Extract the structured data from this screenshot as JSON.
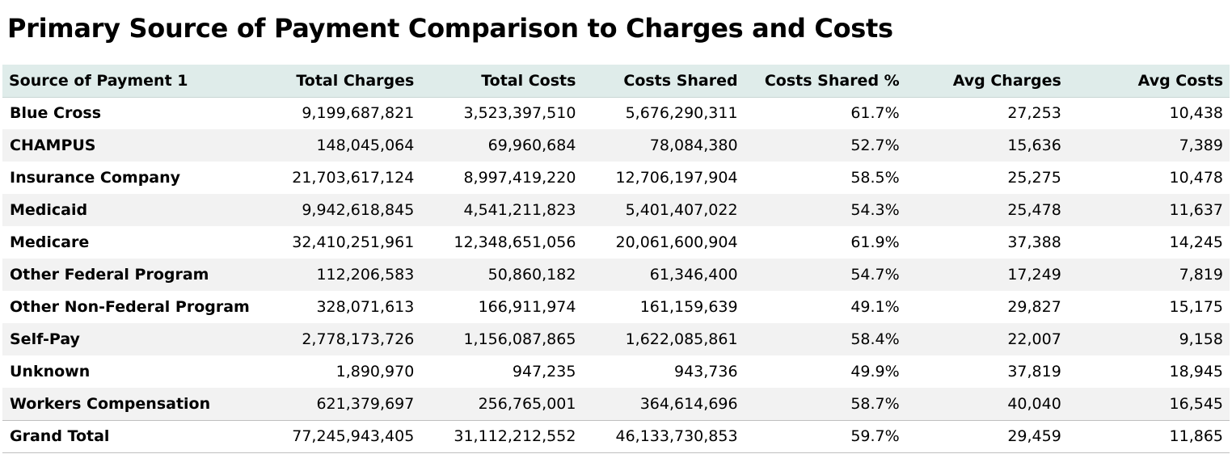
{
  "title": "Primary Source of Payment Comparison to Charges and Costs",
  "chart_data": {
    "type": "table",
    "title": "Primary Source of Payment Comparison to Charges and Costs",
    "columns": [
      "Source of Payment 1",
      "Total Charges",
      "Total Costs",
      "Costs Shared",
      "Costs Shared %",
      "Avg Charges",
      "Avg Costs"
    ],
    "rows": [
      [
        "Blue Cross",
        "9,199,687,821",
        "3,523,397,510",
        "5,676,290,311",
        "61.7%",
        "27,253",
        "10,438"
      ],
      [
        "CHAMPUS",
        "148,045,064",
        "69,960,684",
        "78,084,380",
        "52.7%",
        "15,636",
        "7,389"
      ],
      [
        "Insurance Company",
        "21,703,617,124",
        "8,997,419,220",
        "12,706,197,904",
        "58.5%",
        "25,275",
        "10,478"
      ],
      [
        "Medicaid",
        "9,942,618,845",
        "4,541,211,823",
        "5,401,407,022",
        "54.3%",
        "25,478",
        "11,637"
      ],
      [
        "Medicare",
        "32,410,251,961",
        "12,348,651,056",
        "20,061,600,904",
        "61.9%",
        "37,388",
        "14,245"
      ],
      [
        "Other Federal Program",
        "112,206,583",
        "50,860,182",
        "61,346,400",
        "54.7%",
        "17,249",
        "7,819"
      ],
      [
        "Other Non-Federal Program",
        "328,071,613",
        "166,911,974",
        "161,159,639",
        "49.1%",
        "29,827",
        "15,175"
      ],
      [
        "Self-Pay",
        "2,778,173,726",
        "1,156,087,865",
        "1,622,085,861",
        "58.4%",
        "22,007",
        "9,158"
      ],
      [
        "Unknown",
        "1,890,970",
        "947,235",
        "943,736",
        "49.9%",
        "37,819",
        "18,945"
      ],
      [
        "Workers Compensation",
        "621,379,697",
        "256,765,001",
        "364,614,696",
        "58.7%",
        "40,040",
        "16,545"
      ]
    ],
    "total": [
      "Grand Total",
      "77,245,943,405",
      "31,112,212,552",
      "46,133,730,853",
      "59.7%",
      "29,459",
      "11,865"
    ]
  }
}
